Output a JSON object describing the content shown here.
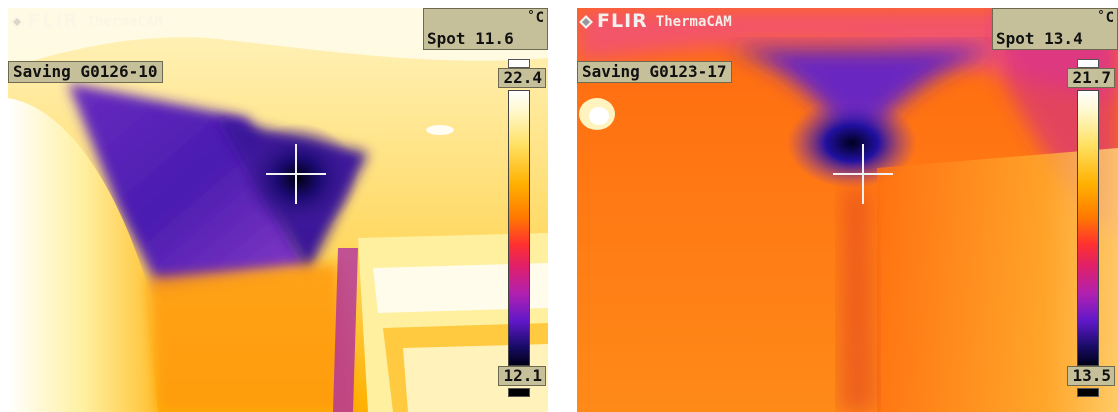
{
  "panels": [
    {
      "brand": "FLIR",
      "product": "ThermaCAM",
      "unit": "C",
      "spot_label": "Spot 11.6",
      "status": "Saving G0126-10",
      "scale_max": "22.4",
      "scale_min": "12.1"
    },
    {
      "brand": "FLIR",
      "product": "ThermaCAM",
      "unit": "C",
      "spot_label": "Spot 13.4",
      "status": "Saving G0123-17",
      "scale_max": "21.7",
      "scale_min": "13.5"
    }
  ],
  "colors": {
    "overlay_tag": "#c6c09a",
    "crosshair": "#f2f2f2"
  }
}
